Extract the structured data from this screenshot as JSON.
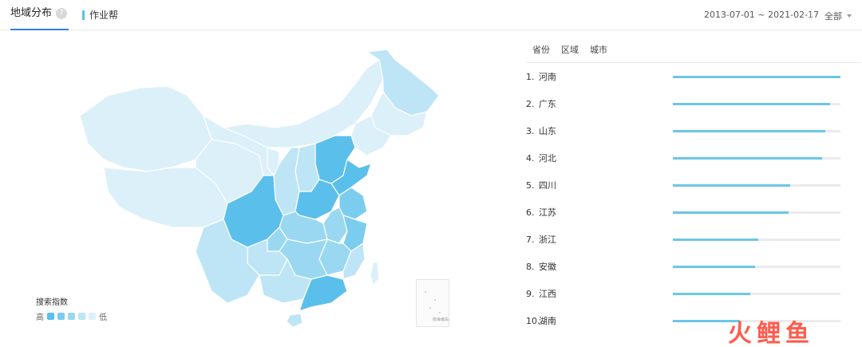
{
  "header": {
    "title": "地域分布",
    "help_icon": "question-circle-icon",
    "series_label": "作业帮",
    "date_range": "2013-07-01 ~ 2021-02-17",
    "scope": "全部"
  },
  "map": {
    "legend_title": "搜索指数",
    "legend_high": "高",
    "legend_low": "低",
    "legend_colors": [
      "#5bbfec",
      "#7bcdef",
      "#9ad8f2",
      "#bde5f6",
      "#dcf0f9"
    ],
    "base_color": "#dcf0f9",
    "inset_note": "南海诸岛"
  },
  "ranking": {
    "tabs": [
      "省份",
      "区域",
      "城市"
    ],
    "items": [
      {
        "rank": "1.",
        "name": "河南",
        "value": 1.0
      },
      {
        "rank": "2.",
        "name": "广东",
        "value": 0.94
      },
      {
        "rank": "3.",
        "name": "山东",
        "value": 0.91
      },
      {
        "rank": "4.",
        "name": "河北",
        "value": 0.89
      },
      {
        "rank": "5.",
        "name": "四川",
        "value": 0.7
      },
      {
        "rank": "6.",
        "name": "江苏",
        "value": 0.69
      },
      {
        "rank": "7.",
        "name": "浙江",
        "value": 0.51
      },
      {
        "rank": "8.",
        "name": "安徽",
        "value": 0.49
      },
      {
        "rank": "9.",
        "name": "江西",
        "value": 0.46
      },
      {
        "rank": "10.",
        "name": "湖南",
        "value": 0.4
      }
    ]
  },
  "watermark": [
    "火",
    "鲤",
    "鱼"
  ]
}
